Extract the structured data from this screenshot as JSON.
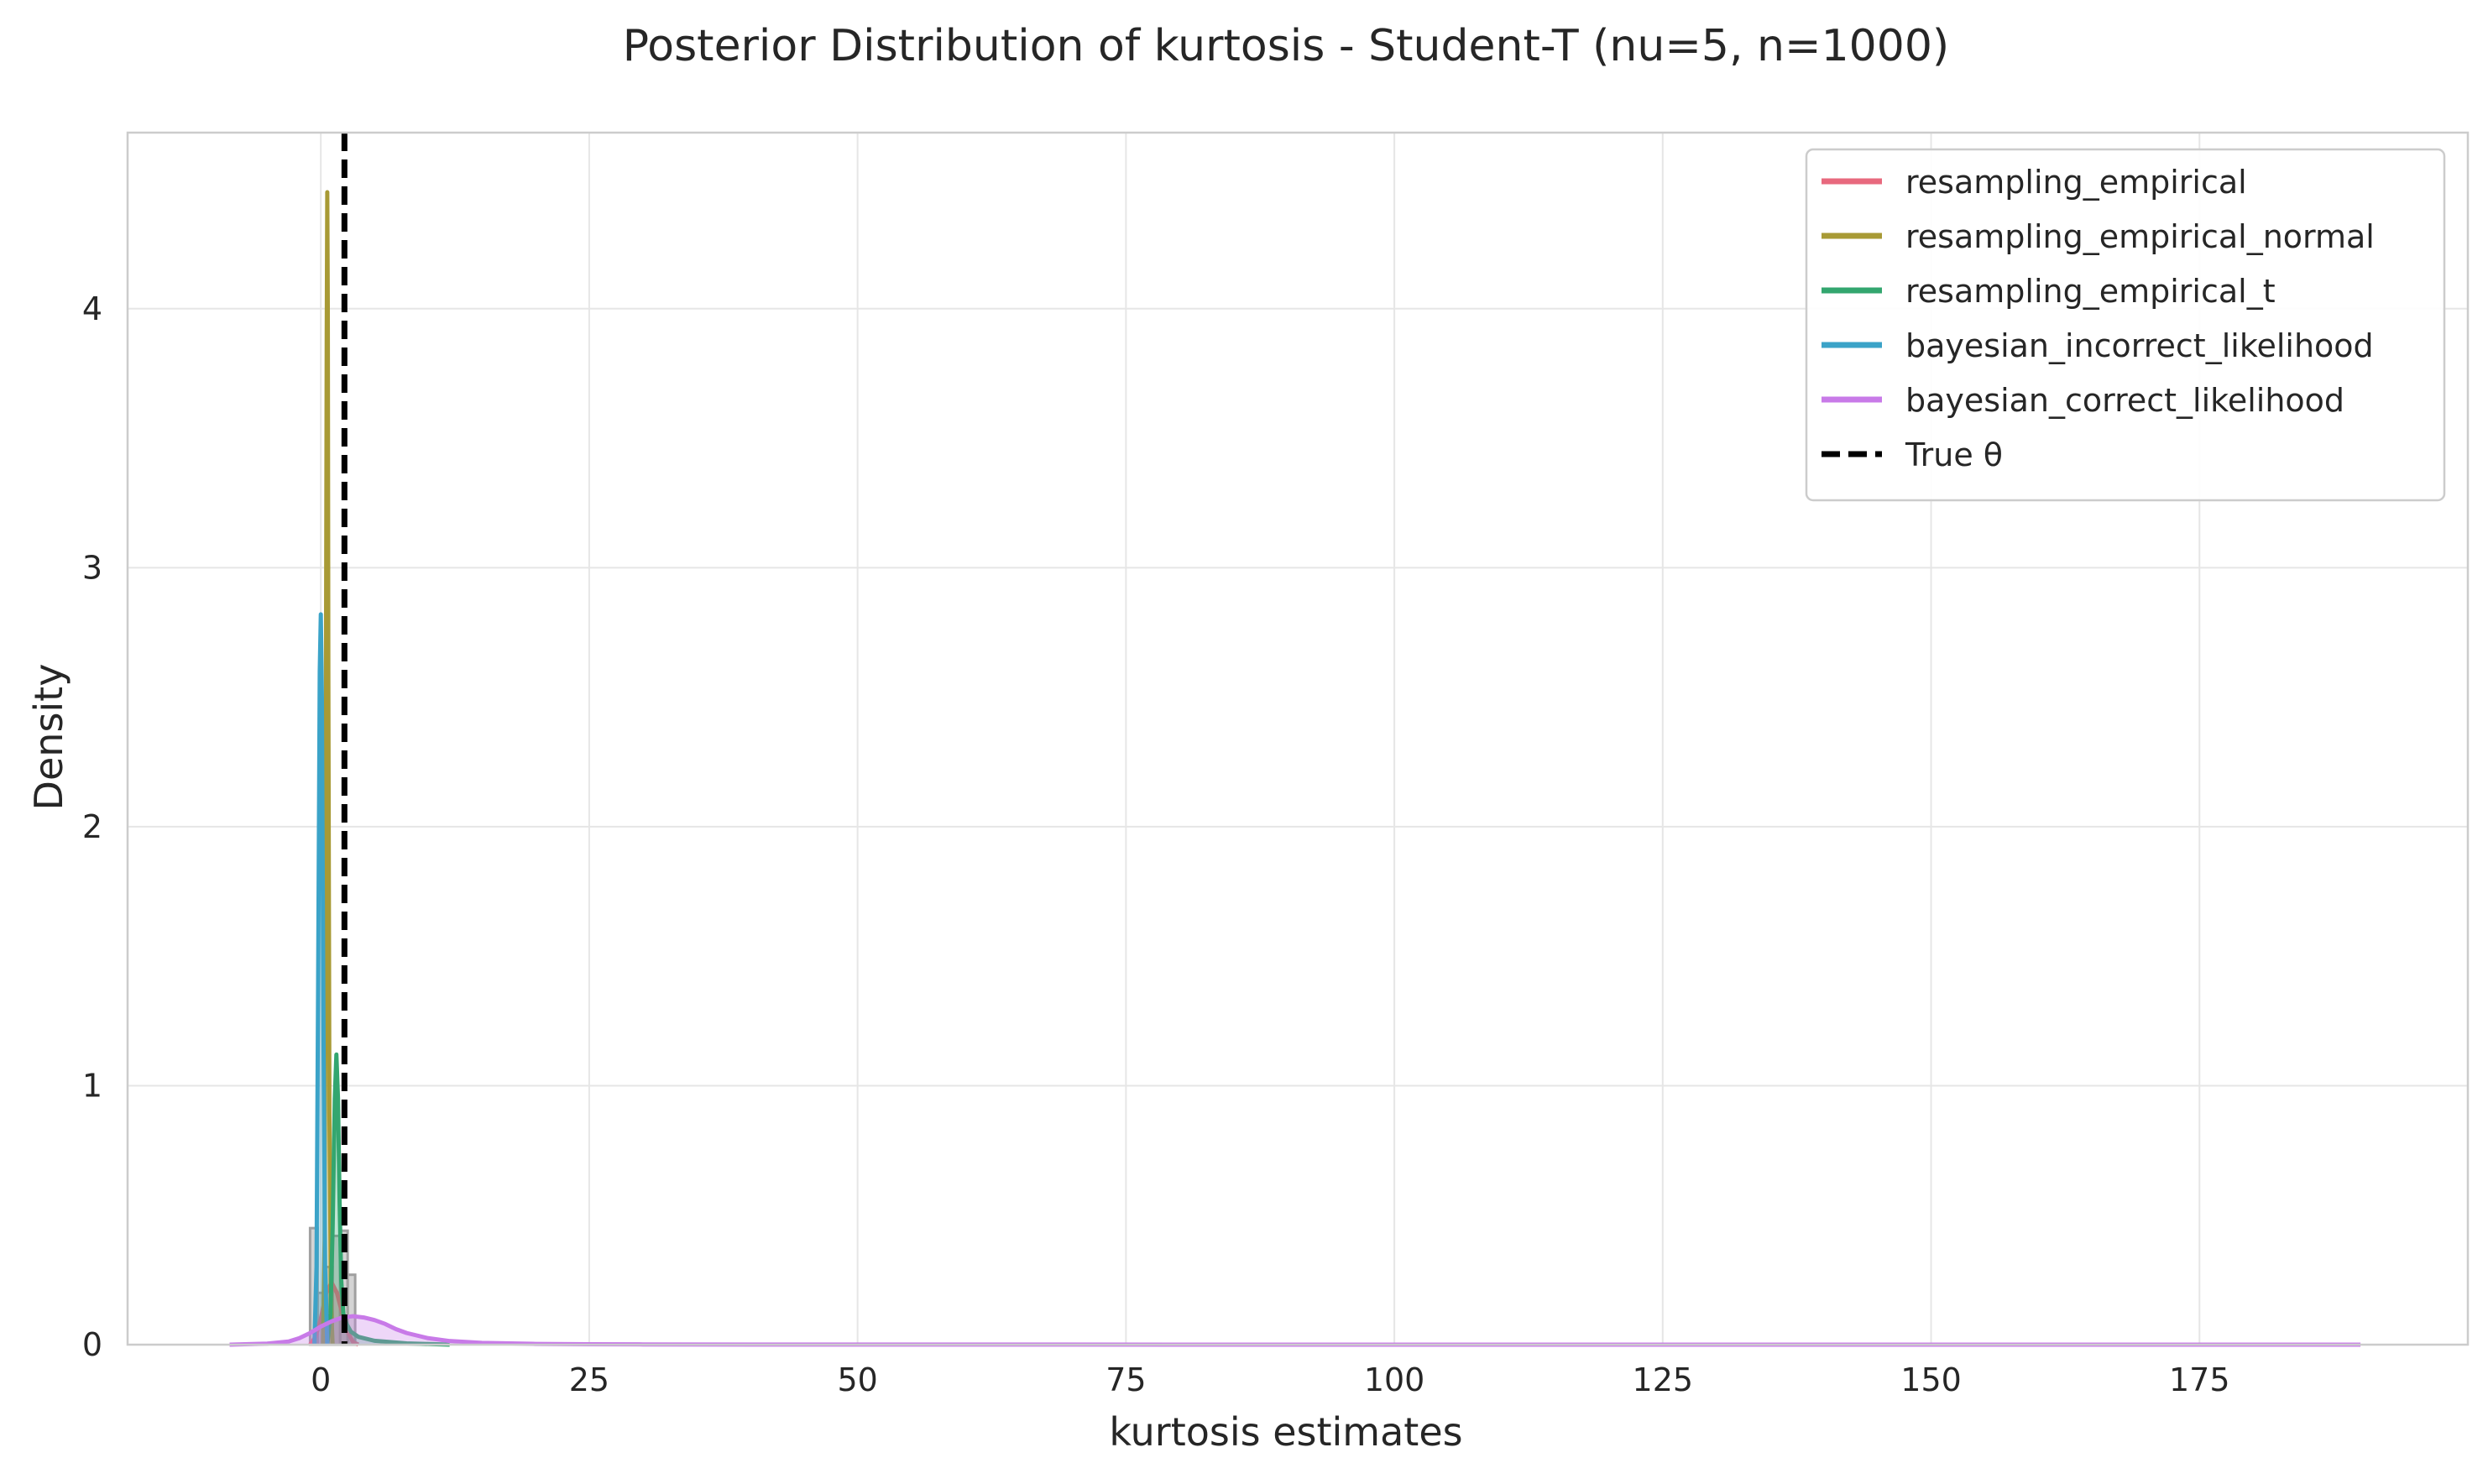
{
  "chart_data": {
    "type": "line",
    "title": "Posterior Distribution of kurtosis - Student-T (nu=5, n=1000)",
    "xlabel": "kurtosis estimates",
    "ylabel": "Density",
    "xlim": [
      -18,
      200
    ],
    "ylim": [
      0,
      4.68
    ],
    "xticks": [
      0,
      25,
      50,
      75,
      100,
      125,
      150,
      175
    ],
    "yticks": [
      0,
      1,
      2,
      3,
      4
    ],
    "grid": true,
    "legend_position": "top-right",
    "true_value": 2.2,
    "reference_line_label": "True θ",
    "histogram": {
      "color": "#a0a0a0",
      "bars": [
        {
          "x0": -1.0,
          "x1": -0.3,
          "value": 0.45
        },
        {
          "x0": -0.3,
          "x1": 0.4,
          "value": 0.2
        },
        {
          "x0": 0.4,
          "x1": 1.1,
          "value": 0.3
        },
        {
          "x0": 1.1,
          "x1": 1.8,
          "value": 0.42
        },
        {
          "x0": 1.8,
          "x1": 2.5,
          "value": 0.44
        },
        {
          "x0": 2.5,
          "x1": 3.2,
          "value": 0.27
        }
      ]
    },
    "series": [
      {
        "name": "resampling_empirical",
        "color": "#e8697e",
        "x": [
          -1.0,
          -0.5,
          0.0,
          0.5,
          1.0,
          1.5,
          2.0,
          2.5,
          3.0,
          3.5
        ],
        "y": [
          0.0,
          0.03,
          0.1,
          0.2,
          0.24,
          0.2,
          0.12,
          0.05,
          0.01,
          0.0
        ]
      },
      {
        "name": "resampling_empirical_normal",
        "color": "#a89a35",
        "x": [
          0.2,
          0.35,
          0.45,
          0.55,
          0.6,
          0.65,
          0.7,
          0.8,
          0.95,
          1.1
        ],
        "y": [
          0.0,
          0.4,
          2.0,
          3.9,
          4.45,
          4.0,
          2.6,
          0.9,
          0.15,
          0.0
        ]
      },
      {
        "name": "resampling_empirical_t",
        "color": "#33a66f",
        "x": [
          0.6,
          0.9,
          1.1,
          1.3,
          1.45,
          1.6,
          1.75,
          1.9,
          2.1,
          2.4,
          2.8,
          3.5,
          5,
          8,
          12
        ],
        "y": [
          0.0,
          0.12,
          0.45,
          0.95,
          1.12,
          0.95,
          0.55,
          0.25,
          0.12,
          0.08,
          0.05,
          0.03,
          0.015,
          0.005,
          0.0
        ]
      },
      {
        "name": "bayesian_incorrect_likelihood",
        "color": "#3ba3c8",
        "x": [
          -0.6,
          -0.4,
          -0.25,
          -0.1,
          0.0,
          0.1,
          0.25,
          0.4,
          0.6
        ],
        "y": [
          0.0,
          0.3,
          1.4,
          2.6,
          2.82,
          2.5,
          1.2,
          0.3,
          0.0
        ]
      },
      {
        "name": "bayesian_correct_likelihood",
        "color": "#c87ae8",
        "x": [
          -8.5,
          -5,
          -3,
          -2,
          -1,
          0,
          1,
          2,
          3,
          4,
          5,
          6,
          7,
          8,
          10,
          12,
          15,
          20,
          25,
          30,
          40,
          60,
          100,
          150,
          190
        ],
        "y": [
          0.0,
          0.004,
          0.012,
          0.025,
          0.045,
          0.07,
          0.09,
          0.105,
          0.11,
          0.105,
          0.095,
          0.08,
          0.06,
          0.045,
          0.025,
          0.014,
          0.007,
          0.003,
          0.0015,
          0.001,
          0.0005,
          0.0003,
          0.0001,
          5e-05,
          0.0
        ]
      }
    ]
  }
}
